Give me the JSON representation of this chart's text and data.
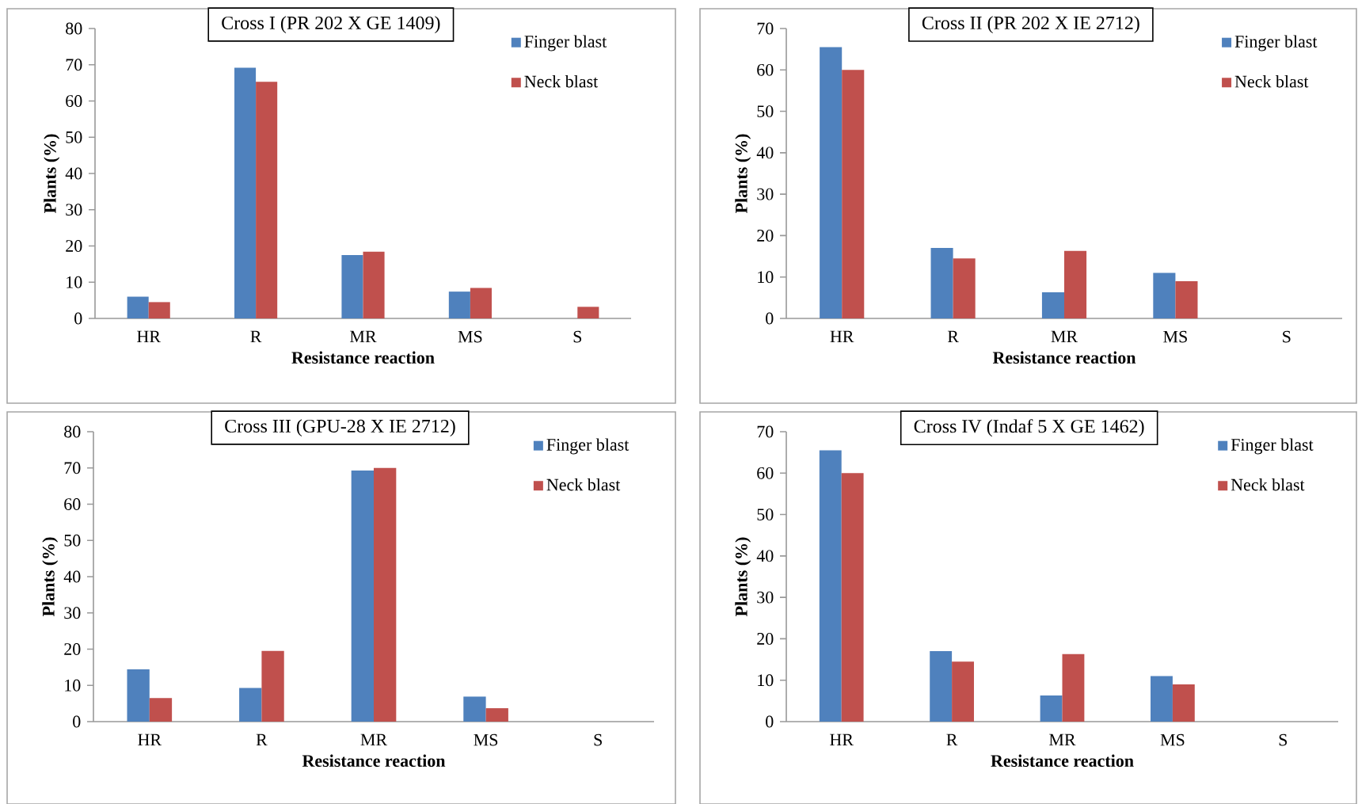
{
  "chart_data": [
    {
      "type": "bar",
      "title": "Cross I (PR 202 X GE 1409)",
      "xlabel": "Resistance reaction",
      "ylabel": "Plants (%)",
      "categories": [
        "HR",
        "R",
        "MR",
        "MS",
        "S"
      ],
      "series": [
        {
          "name": "Finger blast",
          "color": "#4f81bd",
          "values": [
            6,
            69.2,
            17.5,
            7.4,
            0
          ]
        },
        {
          "name": "Neck blast",
          "color": "#c0504d",
          "values": [
            4.5,
            65.3,
            18.4,
            8.4,
            3.2
          ]
        }
      ],
      "ylim": [
        0,
        80
      ],
      "yticks": [
        0,
        10,
        20,
        30,
        40,
        50,
        60,
        70,
        80
      ],
      "legend": "top right"
    },
    {
      "type": "bar",
      "title": "Cross II (PR 202 X IE 2712)",
      "xlabel": "Resistance reaction",
      "ylabel": "Plants (%)",
      "categories": [
        "HR",
        "R",
        "MR",
        "MS",
        "S"
      ],
      "series": [
        {
          "name": "Finger blast",
          "color": "#4f81bd",
          "values": [
            65.5,
            17,
            6.3,
            11,
            0
          ]
        },
        {
          "name": "Neck blast",
          "color": "#c0504d",
          "values": [
            60,
            14.5,
            16.3,
            9,
            0
          ]
        }
      ],
      "ylim": [
        0,
        70
      ],
      "yticks": [
        0,
        10,
        20,
        30,
        40,
        50,
        60,
        70
      ],
      "legend": "top right"
    },
    {
      "type": "bar",
      "title": "Cross III (GPU-28 X IE 2712)",
      "xlabel": "Resistance reaction",
      "ylabel": "Plants (%)",
      "categories": [
        "HR",
        "R",
        "MR",
        "MS",
        "S"
      ],
      "series": [
        {
          "name": "Finger blast",
          "color": "#4f81bd",
          "values": [
            14.4,
            9.3,
            69.3,
            6.9,
            0
          ]
        },
        {
          "name": "Neck blast",
          "color": "#c0504d",
          "values": [
            6.5,
            19.5,
            70,
            3.7,
            0
          ]
        }
      ],
      "ylim": [
        0,
        80
      ],
      "yticks": [
        0,
        10,
        20,
        30,
        40,
        50,
        60,
        70,
        80
      ],
      "legend": "top right"
    },
    {
      "type": "bar",
      "title": "Cross IV (Indaf 5 X GE 1462)",
      "xlabel": "Resistance reaction",
      "ylabel": "Plants (%)",
      "categories": [
        "HR",
        "R",
        "MR",
        "MS",
        "S"
      ],
      "series": [
        {
          "name": "Finger blast",
          "color": "#4f81bd",
          "values": [
            65.5,
            17,
            6.3,
            11,
            0
          ]
        },
        {
          "name": "Neck blast",
          "color": "#c0504d",
          "values": [
            60,
            14.5,
            16.3,
            9,
            0
          ]
        }
      ],
      "ylim": [
        0,
        70
      ],
      "yticks": [
        0,
        10,
        20,
        30,
        40,
        50,
        60,
        70
      ],
      "legend": "top right"
    }
  ]
}
